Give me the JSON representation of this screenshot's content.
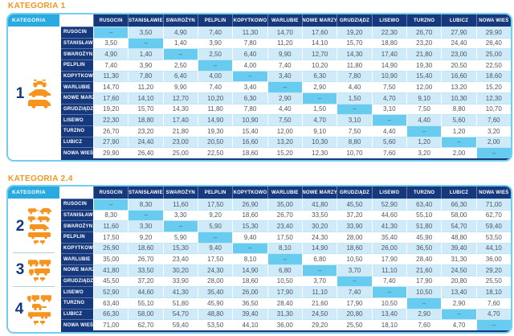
{
  "dash": "–",
  "colors": {
    "title_orange": "#f7941d",
    "header_navy": "#16397d",
    "kategoria_cyan": "#29abe2",
    "row_light_blue": "#cfeaf8",
    "row_white": "#ffffff",
    "diagonal_blue": "#68cbf0",
    "icon_orange": "#f7941d",
    "border_blue": "#72cdf1"
  },
  "stations": [
    "RUSOCIN",
    "STANISŁAWIE",
    "SWAROŻYN",
    "PELPLIN",
    "KOPYTKOWO",
    "WARLUBIE",
    "NOWE MARZY",
    "GRUDZIĄDZ",
    "LISEWO",
    "TURZNO",
    "LUBICZ",
    "NOWA WIEŚ"
  ],
  "tables": [
    {
      "id": "kategoria-1",
      "title": "KATEGORIA 1",
      "sidebar_label": "KATEGORIA",
      "categories": [
        {
          "number": "1",
          "row_span": 12,
          "icons": [
            "quad-icon",
            "car-icon",
            "van-icon"
          ]
        }
      ],
      "rows": [
        {
          "station": "RUSOCIN",
          "values": [
            "–",
            "3,50",
            "4,90",
            "7,40",
            "11,30",
            "14,70",
            "17,60",
            "19,20",
            "22,30",
            "26,70",
            "27,90",
            "29,90"
          ]
        },
        {
          "station": "STANISŁAWIE",
          "values": [
            "3,50",
            "–",
            "1,40",
            "3,90",
            "7,80",
            "11,20",
            "14,10",
            "15,70",
            "18,80",
            "23,20",
            "24,40",
            "26,40"
          ]
        },
        {
          "station": "SWAROŻYN",
          "values": [
            "4,90",
            "1,40",
            "–",
            "2,50",
            "6,40",
            "9,90",
            "12,70",
            "14,30",
            "17,40",
            "21,80",
            "23,00",
            "25,00"
          ]
        },
        {
          "station": "PELPLIN",
          "values": [
            "7,40",
            "3,90",
            "2,50",
            "–",
            "4,00",
            "7,40",
            "10,20",
            "11,80",
            "14,90",
            "19,30",
            "20,50",
            "22,50"
          ]
        },
        {
          "station": "KOPYTKOWO",
          "values": [
            "11,30",
            "7,80",
            "6,40",
            "4,00",
            "–",
            "3,40",
            "6,30",
            "7,80",
            "10,90",
            "15,40",
            "16,60",
            "18,60"
          ]
        },
        {
          "station": "WARLUBIE",
          "values": [
            "14,70",
            "11,20",
            "9,90",
            "7,40",
            "3,40",
            "–",
            "2,90",
            "4,40",
            "7,50",
            "12,00",
            "13,20",
            "15,20"
          ]
        },
        {
          "station": "NOWE MARZY",
          "values": [
            "17,60",
            "14,10",
            "12,70",
            "10,20",
            "6,30",
            "2,90",
            "–",
            "1,50",
            "4,70",
            "9,10",
            "10,30",
            "12,30"
          ]
        },
        {
          "station": "GRUDZIĄDZ",
          "values": [
            "19,20",
            "15,70",
            "14,30",
            "11,80",
            "7,80",
            "4,40",
            "1,50",
            "–",
            "3,10",
            "7,50",
            "8,80",
            "10,70"
          ]
        },
        {
          "station": "LISEWO",
          "values": [
            "22,30",
            "18,80",
            "17,40",
            "14,90",
            "10,90",
            "7,50",
            "4,70",
            "3,10",
            "–",
            "4,40",
            "5,60",
            "7,60"
          ]
        },
        {
          "station": "TURZNO",
          "values": [
            "26,70",
            "23,20",
            "21,80",
            "19,30",
            "15,40",
            "12,00",
            "9,10",
            "7,50",
            "4,40",
            "–",
            "1,20",
            "3,20"
          ]
        },
        {
          "station": "LUBICZ",
          "values": [
            "27,90",
            "24,40",
            "23,00",
            "20,50",
            "16,60",
            "13,20",
            "10,30",
            "8,80",
            "5,60",
            "1,20",
            "–",
            "2,00"
          ]
        },
        {
          "station": "NOWA WIEŚ",
          "values": [
            "29,90",
            "26,40",
            "25,00",
            "22,50",
            "18,60",
            "15,20",
            "12,30",
            "10,70",
            "7,60",
            "3,20",
            "2,00",
            "–"
          ]
        }
      ]
    },
    {
      "id": "kategoria-24",
      "title": "KATEGORIA 2.4",
      "sidebar_label": "KATEGORIA",
      "categories": [
        {
          "number": "2",
          "row_span": 5,
          "icons": [
            "car-caravan-icon",
            "van-trailer-icon",
            "minibus-icon",
            "bus-icon",
            "car-trailer-icon"
          ]
        },
        {
          "number": "3",
          "row_span": 3,
          "icons": [
            "truck-trailer-icon",
            "truck-icon",
            "car-trailer-icon"
          ]
        },
        {
          "number": "4",
          "row_span": 4,
          "icons": [
            "roadtrain-icon",
            "truck-cab-icon",
            "semitrailer-icon",
            "car-trailer-icon"
          ]
        }
      ],
      "rows": [
        {
          "station": "RUSOCIN",
          "values": [
            "–",
            "8,30",
            "11,60",
            "17,50",
            "26,90",
            "35,00",
            "41,80",
            "45,50",
            "52,90",
            "63,40",
            "66,30",
            "71,00"
          ]
        },
        {
          "station": "STANISŁAWIE",
          "values": [
            "8,30",
            "–",
            "3,30",
            "9,20",
            "18,60",
            "26,70",
            "33,50",
            "37,20",
            "44,60",
            "55,10",
            "58,00",
            "62,70"
          ]
        },
        {
          "station": "SWAROŻYN",
          "values": [
            "11,60",
            "3,30",
            "–",
            "5,90",
            "15,30",
            "23,40",
            "30,20",
            "33,90",
            "41,30",
            "51,80",
            "54,70",
            "59,40"
          ]
        },
        {
          "station": "PELPLIN",
          "values": [
            "17,50",
            "9,20",
            "5,90",
            "–",
            "9,40",
            "17,50",
            "24,30",
            "28,00",
            "35,40",
            "45,90",
            "48,80",
            "53,50"
          ]
        },
        {
          "station": "KOPYTKOWO",
          "values": [
            "26,90",
            "18,60",
            "15,30",
            "9,40",
            "–",
            "8,10",
            "14,90",
            "18,60",
            "26,00",
            "36,50",
            "39,40",
            "44,10"
          ]
        },
        {
          "station": "WARLUBIE",
          "values": [
            "35,00",
            "26,70",
            "23,40",
            "17,50",
            "8,10",
            "–",
            "6,80",
            "10,50",
            "17,90",
            "28,40",
            "31,30",
            "36,00"
          ]
        },
        {
          "station": "NOWE MARZY",
          "values": [
            "41,80",
            "33,50",
            "30,20",
            "24,30",
            "14,90",
            "6,80",
            "–",
            "3,70",
            "11,10",
            "21,60",
            "24,50",
            "29,20"
          ]
        },
        {
          "station": "GRUDZIĄDZ",
          "values": [
            "45,50",
            "37,20",
            "33,90",
            "28,00",
            "18,60",
            "10,50",
            "3,70",
            "–",
            "7,40",
            "17,90",
            "20,80",
            "25,50"
          ]
        },
        {
          "station": "LISEWO",
          "values": [
            "52,90",
            "44,60",
            "41,30",
            "35,40",
            "26,00",
            "17,90",
            "11,10",
            "7,40",
            "–",
            "10,50",
            "13,40",
            "18,10"
          ]
        },
        {
          "station": "TURZNO",
          "values": [
            "63,40",
            "55,10",
            "51,80",
            "45,90",
            "36,50",
            "28,40",
            "21,60",
            "17,90",
            "10,50",
            "–",
            "2,90",
            "7,60"
          ]
        },
        {
          "station": "LUBICZ",
          "values": [
            "66,30",
            "58,00",
            "54,70",
            "48,80",
            "39,40",
            "31,30",
            "24,50",
            "20,80",
            "13,40",
            "2,90",
            "–",
            "4,70"
          ]
        },
        {
          "station": "NOWA WIEŚ",
          "values": [
            "71,00",
            "62,70",
            "59,40",
            "53,50",
            "44,10",
            "36,00",
            "29,20",
            "25,50",
            "18,10",
            "7,60",
            "4,70",
            "–"
          ]
        }
      ]
    }
  ]
}
